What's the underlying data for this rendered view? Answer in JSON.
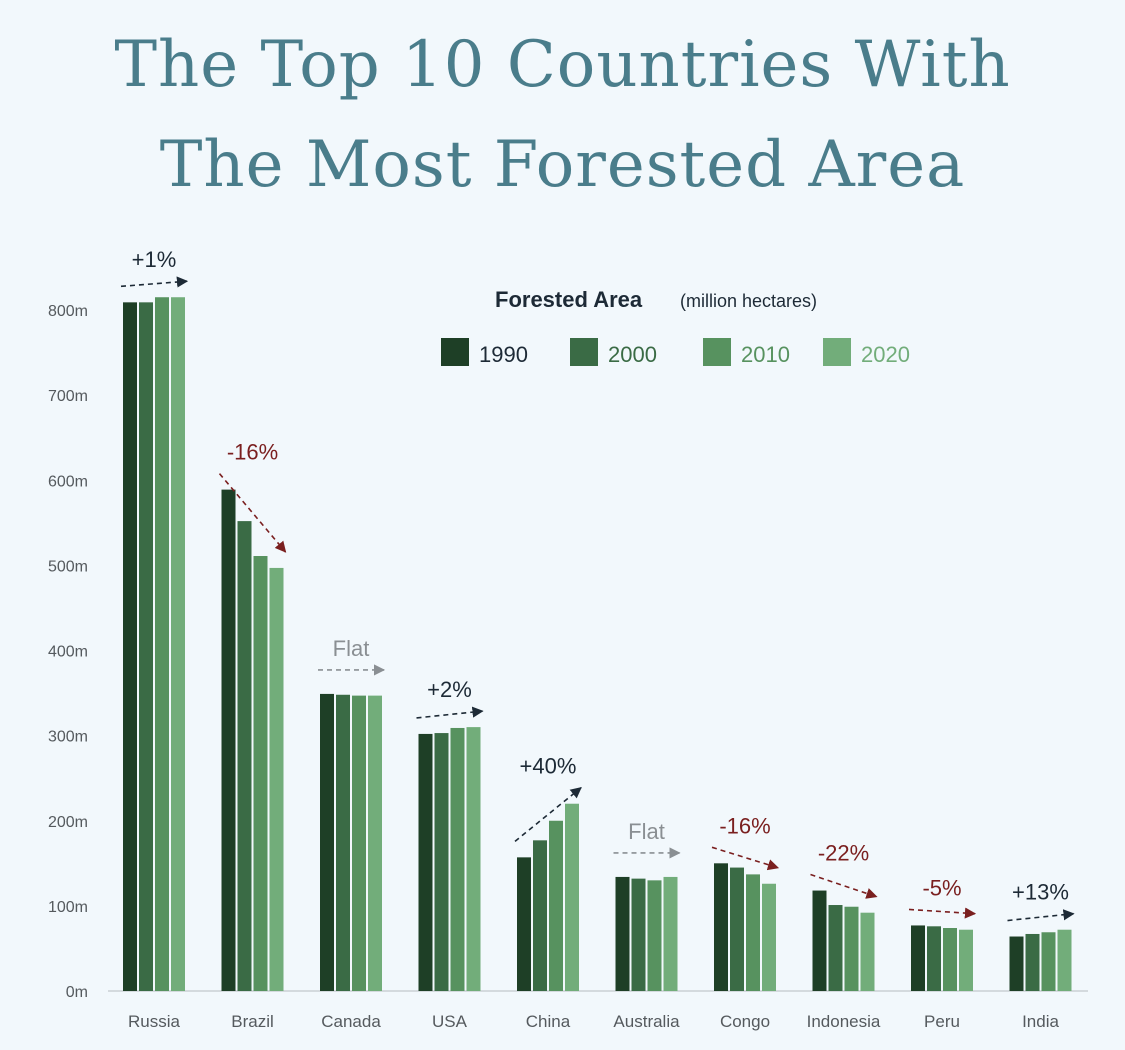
{
  "title_lines": [
    "The Top 10 Countries With",
    "The Most Forested Area"
  ],
  "colors": {
    "series": [
      "#1e3f26",
      "#3a6b45",
      "#57925f",
      "#72ad7a"
    ],
    "title": "#4a7d8b",
    "increase": "#1d2a36",
    "decrease": "#7a1f1f",
    "flat": "#8a8f93",
    "axis_text": "#555a5e"
  },
  "chart_data": {
    "type": "bar",
    "title": "The Top 10 Countries With The Most Forested Area",
    "legend_title": "Forested Area",
    "legend_subtitle": "(million hectares)",
    "legend_position": "top-right",
    "ylim": [
      0,
      800
    ],
    "yticks": [
      0,
      100,
      200,
      300,
      400,
      500,
      600,
      700,
      800
    ],
    "ytick_labels": [
      "0m",
      "100m",
      "200m",
      "300m",
      "400m",
      "500m",
      "600m",
      "700m",
      "800m"
    ],
    "grid": false,
    "categories": [
      "Russia",
      "Brazil",
      "Canada",
      "USA",
      "China",
      "Australia",
      "Congo",
      "Indonesia",
      "Peru",
      "India"
    ],
    "series": [
      {
        "name": "1990",
        "values": [
          809,
          589,
          349,
          302,
          157,
          134,
          150,
          118,
          77,
          64
        ]
      },
      {
        "name": "2000",
        "values": [
          809,
          552,
          348,
          303,
          177,
          132,
          145,
          101,
          76,
          67
        ]
      },
      {
        "name": "2010",
        "values": [
          815,
          511,
          347,
          309,
          200,
          130,
          137,
          99,
          74,
          69
        ]
      },
      {
        "name": "2020",
        "values": [
          815,
          497,
          347,
          310,
          220,
          134,
          126,
          92,
          72,
          72
        ]
      }
    ],
    "annotations": [
      {
        "category": "Russia",
        "label": "+1%",
        "trend": "up"
      },
      {
        "category": "Brazil",
        "label": "-16%",
        "trend": "down"
      },
      {
        "category": "Canada",
        "label": "Flat",
        "trend": "flat"
      },
      {
        "category": "USA",
        "label": "+2%",
        "trend": "up"
      },
      {
        "category": "China",
        "label": "+40%",
        "trend": "up"
      },
      {
        "category": "Australia",
        "label": "Flat",
        "trend": "flat"
      },
      {
        "category": "Congo",
        "label": "-16%",
        "trend": "down"
      },
      {
        "category": "Indonesia",
        "label": "-22%",
        "trend": "down"
      },
      {
        "category": "Peru",
        "label": "-5%",
        "trend": "down"
      },
      {
        "category": "India",
        "label": "+13%",
        "trend": "up"
      }
    ]
  }
}
